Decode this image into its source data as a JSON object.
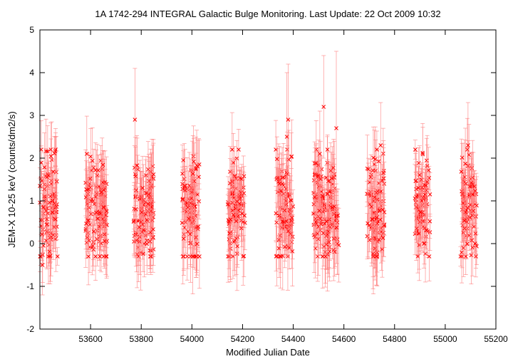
{
  "chart_data": {
    "type": "scatter",
    "title": "1A 1742-294   INTEGRAL Galactic Bulge Monitoring.  Last Update: 22 Oct 2009 10:32",
    "xlabel": "Modified Julian Date",
    "ylabel": "JEM-X 10-25 keV (counts/dm2/s)",
    "xlim": [
      53400,
      55200
    ],
    "ylim": [
      -2,
      5
    ],
    "x_ticks": [
      "53600",
      "53800",
      "54000",
      "54200",
      "54400",
      "54600",
      "54800",
      "55000",
      "55200"
    ],
    "y_ticks": [
      "-2",
      "-1",
      "0",
      "1",
      "2",
      "3",
      "4",
      "5"
    ],
    "grid": false,
    "legend": "none",
    "series_color": "#ff0000",
    "errorbar_color": "#ff8080",
    "marker": "x",
    "observation_windows_mjd": [
      [
        53400,
        53470
      ],
      [
        53580,
        53665
      ],
      [
        53770,
        53850
      ],
      [
        53960,
        54030
      ],
      [
        54140,
        54210
      ],
      [
        54330,
        54400
      ],
      [
        54480,
        54580
      ],
      [
        54690,
        54760
      ],
      [
        54880,
        54940
      ],
      [
        55060,
        55125
      ]
    ],
    "notable_points": [
      {
        "x": 53410,
        "y": -0.5,
        "yerr": 0.7
      },
      {
        "x": 53775,
        "y": 2.9,
        "yerr": 1.2
      },
      {
        "x": 54375,
        "y": 2.5,
        "yerr": 1.5
      },
      {
        "x": 54380,
        "y": 2.9,
        "yerr": 1.3
      },
      {
        "x": 54505,
        "y": 2.1,
        "yerr": 1.0
      },
      {
        "x": 54520,
        "y": 3.2,
        "yerr": 1.2
      },
      {
        "x": 54570,
        "y": 2.7,
        "yerr": 1.8
      },
      {
        "x": 54745,
        "y": 2.3,
        "yerr": 1.0
      },
      {
        "x": 55090,
        "y": 2.3,
        "yerr": 1.0
      },
      {
        "x": 55118,
        "y": 0.0,
        "yerr": 0.3
      }
    ],
    "typical_y_range": [
      0.0,
      1.6
    ],
    "typical_yerr_range": [
      0.2,
      0.9
    ]
  }
}
